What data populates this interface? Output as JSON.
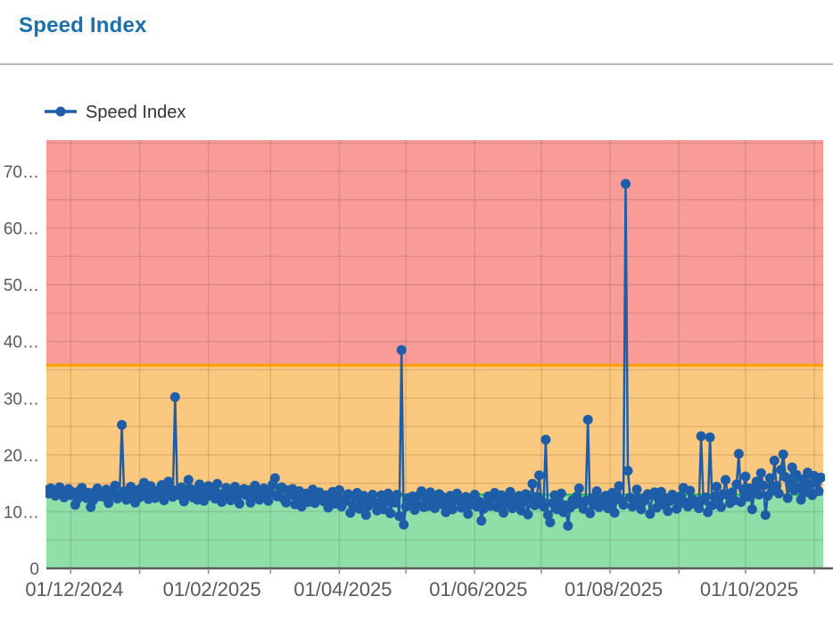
{
  "header": {
    "title": "Speed Index"
  },
  "chart_data": {
    "type": "line",
    "title": "Speed Index",
    "legend": {
      "label": "Speed Index",
      "position": "top-left"
    },
    "x_axis": {
      "kind": "time",
      "domain_days": [
        0,
        350
      ],
      "ticks": [
        {
          "day": 11,
          "label": "01/12/2024"
        },
        {
          "day": 42,
          "label": ""
        },
        {
          "day": 73,
          "label": "01/02/2025"
        },
        {
          "day": 101,
          "label": ""
        },
        {
          "day": 132,
          "label": "01/04/2025"
        },
        {
          "day": 162,
          "label": ""
        },
        {
          "day": 193,
          "label": "01/06/2025"
        },
        {
          "day": 223,
          "label": ""
        },
        {
          "day": 254,
          "label": "01/08/2025"
        },
        {
          "day": 285,
          "label": ""
        },
        {
          "day": 315,
          "label": "01/10/2025"
        },
        {
          "day": 346,
          "label": ""
        }
      ]
    },
    "y_axis": {
      "range": [
        0,
        75.5
      ],
      "gridline_step": 5,
      "ticks": [
        {
          "v": 0,
          "label": "0"
        },
        {
          "v": 10,
          "label": "10…"
        },
        {
          "v": 20,
          "label": "20…"
        },
        {
          "v": 30,
          "label": "30…"
        },
        {
          "v": 40,
          "label": "40…"
        },
        {
          "v": 50,
          "label": "50…"
        },
        {
          "v": 60,
          "label": "60…"
        },
        {
          "v": 70,
          "label": "70…"
        }
      ]
    },
    "zones": [
      {
        "name": "good",
        "from": 0,
        "to": 13,
        "color": "#90dfa8"
      },
      {
        "name": "moderate",
        "from": 13,
        "to": 35.8,
        "color": "#fac87e"
      },
      {
        "name": "poor",
        "from": 35.8,
        "to": 75.5,
        "color": "#f99b97"
      }
    ],
    "threshold_lines": [
      {
        "value": 35.8,
        "color": "#ffa000",
        "width": 3
      },
      {
        "value": 13,
        "color": "#2eb85c",
        "width": 2.5
      }
    ],
    "grid_color": "rgba(60,40,20,0.14)",
    "axis_color": "#5c5c5c",
    "label_color": "#595959",
    "series": [
      {
        "name": "Speed Index",
        "color": "#1e5ea8",
        "start_day": 0,
        "values": [
          13.8,
          13.2,
          14.1,
          13.5,
          12.8,
          13.9,
          14.3,
          13.1,
          12.5,
          13.6,
          14.0,
          12.9,
          13.4,
          11.2,
          12.2,
          13.7,
          14.2,
          13.0,
          12.4,
          13.3,
          10.8,
          12.0,
          13.5,
          14.1,
          12.7,
          13.2,
          12.6,
          13.9,
          11.5,
          12.8,
          13.4,
          14.6,
          12.3,
          13.0,
          25.3,
          13.6,
          12.1,
          13.3,
          14.4,
          12.9,
          11.6,
          13.8,
          12.5,
          14.2,
          15.1,
          13.1,
          12.2,
          14.5,
          13.7,
          12.4,
          12.8,
          13.9,
          14.7,
          12.0,
          13.5,
          15.3,
          14.1,
          12.6,
          30.2,
          13.8,
          12.9,
          14.3,
          11.8,
          13.2,
          15.6,
          14.0,
          12.5,
          13.7,
          12.1,
          14.8,
          13.4,
          11.9,
          13.0,
          14.5,
          12.8,
          13.6,
          12.3,
          14.9,
          13.1,
          11.7,
          12.8,
          14.2,
          13.5,
          12.0,
          13.9,
          14.4,
          12.6,
          11.4,
          13.3,
          14.0,
          12.9,
          13.8,
          11.6,
          12.4,
          14.6,
          13.2,
          12.1,
          13.7,
          14.1,
          12.5,
          11.9,
          13.4,
          14.8,
          15.9,
          12.7,
          13.0,
          14.3,
          12.2,
          11.6,
          13.8,
          12.9,
          14.0,
          11.3,
          12.5,
          13.6,
          10.9,
          12.0,
          13.2,
          11.7,
          12.8,
          13.9,
          11.5,
          12.3,
          13.4,
          12.6,
          11.8,
          12.9,
          10.7,
          12.2,
          13.5,
          11.4,
          12.6,
          13.8,
          10.9,
          11.7,
          12.4,
          13.1,
          9.8,
          11.2,
          12.7,
          13.3,
          10.5,
          11.9,
          12.8,
          9.4,
          11.0,
          12.3,
          13.0,
          11.6,
          10.2,
          11.5,
          12.9,
          10.4,
          11.8,
          13.2,
          9.7,
          12.1,
          11.6,
          13.0,
          9.2,
          38.5,
          7.7,
          10.9,
          12.4,
          11.1,
          12.7,
          10.3,
          11.4,
          12.9,
          13.6,
          10.8,
          12.2,
          11.0,
          13.4,
          12.1,
          10.6,
          12.0,
          13.1,
          11.3,
          12.5,
          9.9,
          11.7,
          12.8,
          10.4,
          11.9,
          13.2,
          12.3,
          10.7,
          11.5,
          12.6,
          9.6,
          11.2,
          12.4,
          13.0,
          10.9,
          11.8,
          8.4,
          10.5,
          11.4,
          12.7,
          11.0,
          12.5,
          13.3,
          10.8,
          11.6,
          12.9,
          9.8,
          11.3,
          12.1,
          13.5,
          10.6,
          12.0,
          11.4,
          12.8,
          10.2,
          11.7,
          13.1,
          9.5,
          12.3,
          14.9,
          11.1,
          12.6,
          16.4,
          11.9,
          10.9,
          22.7,
          9.4,
          8.1,
          11.5,
          12.9,
          10.4,
          11.8,
          13.2,
          9.9,
          11.1,
          7.5,
          10.7,
          12.0,
          11.3,
          12.7,
          14.1,
          11.4,
          10.5,
          11.9,
          26.2,
          9.7,
          12.4,
          11.2,
          13.6,
          10.8,
          12.1,
          11.4,
          12.8,
          10.6,
          11.7,
          13.3,
          9.8,
          12.2,
          14.5,
          12.0,
          11.2,
          67.8,
          17.2,
          12.5,
          10.9,
          11.6,
          13.9,
          12.3,
          10.4,
          11.8,
          12.6,
          13.1,
          9.6,
          12.9,
          13.4,
          10.7,
          12.1,
          13.5,
          11.2,
          12.4,
          10.1,
          11.9,
          13.0,
          12.6,
          10.5,
          11.3,
          12.8,
          14.2,
          11.6,
          10.9,
          13.7,
          12.2,
          11.4,
          11.8,
          10.6,
          23.3,
          12.0,
          12.5,
          9.9,
          23.1,
          11.1,
          12.7,
          14.4,
          12.3,
          10.8,
          13.1,
          15.6,
          12.9,
          11.5,
          13.4,
          12.0,
          14.8,
          20.2,
          11.7,
          13.9,
          16.2,
          12.6,
          14.1,
          10.4,
          13.5,
          15.3,
          13.0,
          16.8,
          14.6,
          9.4,
          12.8,
          15.9,
          13.7,
          19.0,
          14.5,
          13.2,
          17.4,
          20.1,
          16.1,
          12.4,
          15.0,
          17.8,
          13.8,
          16.5,
          14.2,
          12.1,
          15.7,
          13.4,
          16.9,
          14.8,
          12.9,
          16.3,
          15.1,
          13.6,
          16.0
        ]
      }
    ]
  }
}
